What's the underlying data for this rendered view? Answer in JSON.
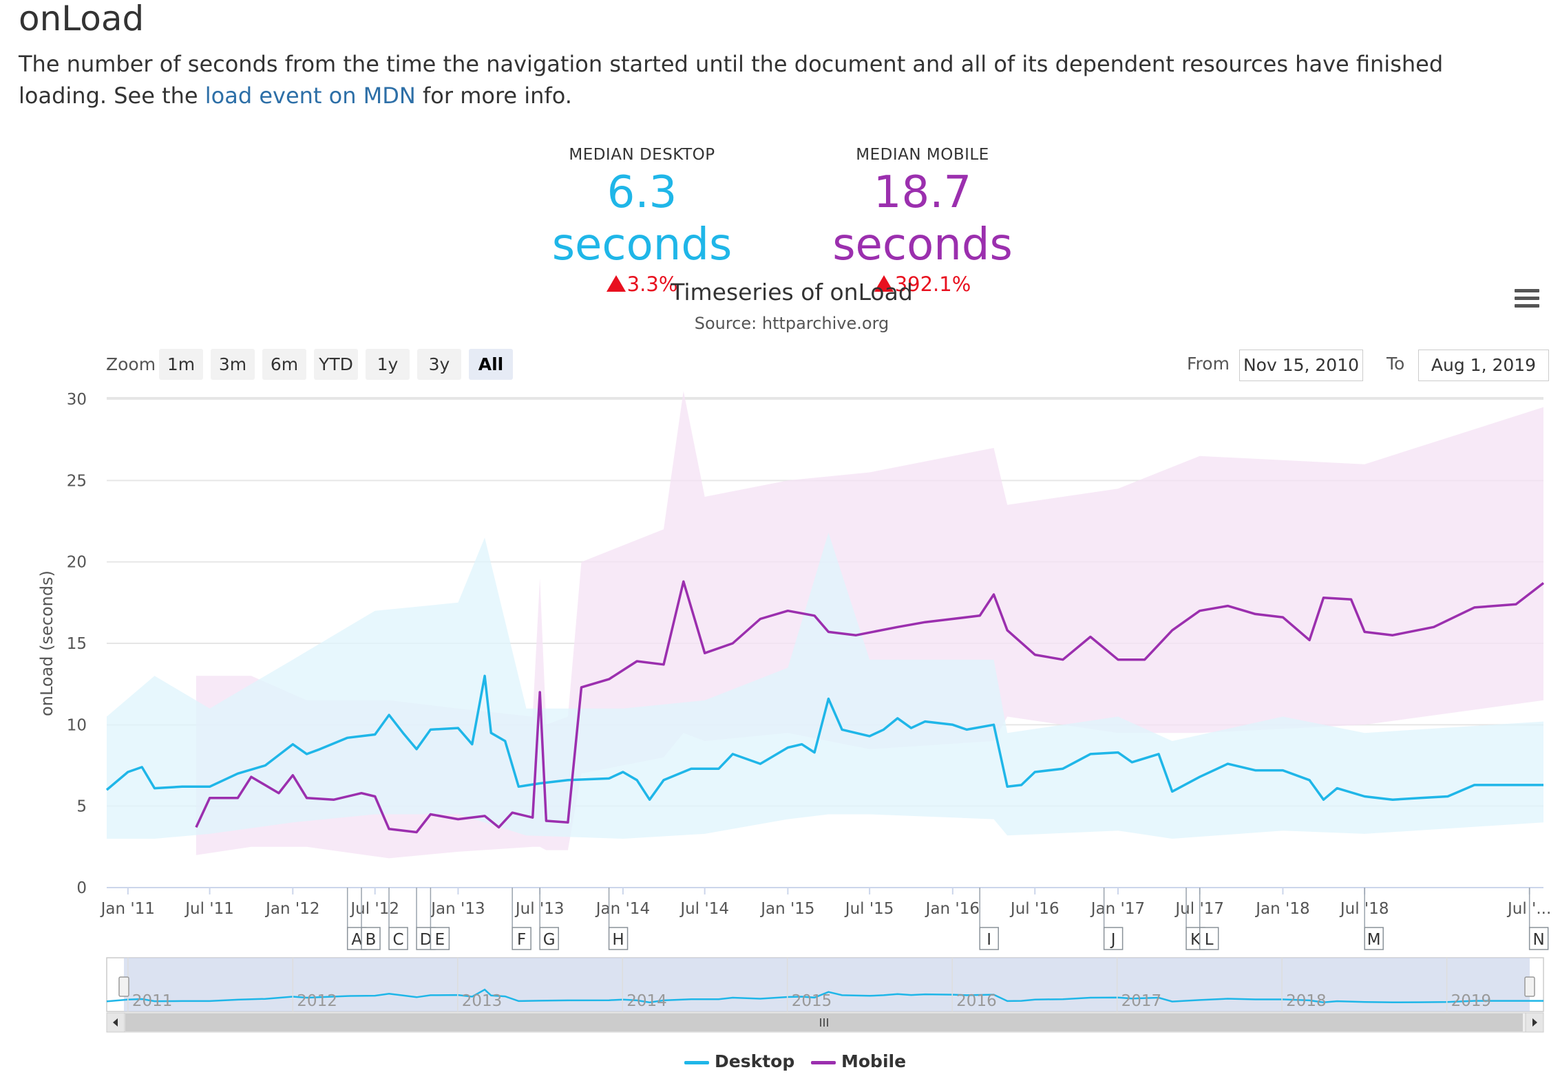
{
  "page": {
    "title": "onLoad",
    "description_before": "The number of seconds from the time the navigation started until the document and all of its dependent resources have finished loading. See the ",
    "description_link": "load event on MDN",
    "description_after": " for more info."
  },
  "metrics": [
    {
      "label": "MEDIAN DESKTOP",
      "value": "6.3 seconds",
      "change": "3.3%",
      "color": "#1fb6e8"
    },
    {
      "label": "MEDIAN MOBILE",
      "value": "18.7 seconds",
      "change": "392.1%",
      "color": "#9b2fae"
    }
  ],
  "toolbar": {
    "zoom_label": "Zoom",
    "zoom_buttons": [
      "1m",
      "3m",
      "6m",
      "YTD",
      "1y",
      "3y",
      "All"
    ],
    "active_zoom": "All",
    "from_label": "From",
    "from_value": "Nov 15, 2010",
    "to_label": "To",
    "to_value": "Aug 1, 2019",
    "menu_icon": "hamburger-menu-icon"
  },
  "colors": {
    "desktop": "#1fb6e8",
    "mobile": "#9b2fae",
    "desktop_band": "#dff4fc",
    "mobile_band": "#f4e1f4",
    "negative_change": "#e8101f",
    "link": "#2d6fa7"
  },
  "chart_data": {
    "type": "line",
    "title": "Timeseries of onLoad",
    "subtitle": "Source: httparchive.org",
    "ylabel": "onLoad (seconds)",
    "ylim": [
      0,
      30
    ],
    "yticks": [
      0,
      5,
      10,
      15,
      20,
      25,
      30
    ],
    "xlim": [
      "2010-11-15",
      "2019-08-01"
    ],
    "xticks": [
      {
        "date": "2011-01-01",
        "label": "Jan '11"
      },
      {
        "date": "2011-07-01",
        "label": "Jul '11"
      },
      {
        "date": "2012-01-01",
        "label": "Jan '12"
      },
      {
        "date": "2012-07-01",
        "label": "Jul '12"
      },
      {
        "date": "2013-01-01",
        "label": "Jan '13"
      },
      {
        "date": "2013-07-01",
        "label": "Jul '13"
      },
      {
        "date": "2014-01-01",
        "label": "Jan '14"
      },
      {
        "date": "2014-07-01",
        "label": "Jul '14"
      },
      {
        "date": "2015-01-01",
        "label": "Jan '15"
      },
      {
        "date": "2015-07-01",
        "label": "Jul '15"
      },
      {
        "date": "2016-01-01",
        "label": "Jan '16"
      },
      {
        "date": "2016-07-01",
        "label": "Jul '16"
      },
      {
        "date": "2017-01-01",
        "label": "Jan '17"
      },
      {
        "date": "2017-07-01",
        "label": "Jul '17"
      },
      {
        "date": "2018-01-01",
        "label": "Jan '18"
      },
      {
        "date": "2018-07-01",
        "label": "Jul '18"
      },
      {
        "date": "2019-07-01",
        "label": "Jul '..."
      }
    ],
    "grid": true,
    "legend": "bottom-center",
    "series": [
      {
        "name": "Desktop",
        "points": [
          [
            "2010-11-15",
            6.0
          ],
          [
            "2011-01-01",
            7.1
          ],
          [
            "2011-02-01",
            7.4
          ],
          [
            "2011-03-01",
            6.1
          ],
          [
            "2011-05-01",
            6.2
          ],
          [
            "2011-07-01",
            6.2
          ],
          [
            "2011-09-01",
            7.0
          ],
          [
            "2011-11-01",
            7.5
          ],
          [
            "2012-01-01",
            8.8
          ],
          [
            "2012-02-01",
            8.2
          ],
          [
            "2012-03-01",
            8.5
          ],
          [
            "2012-05-01",
            9.2
          ],
          [
            "2012-07-01",
            9.4
          ],
          [
            "2012-08-01",
            10.6
          ],
          [
            "2012-09-01",
            9.5
          ],
          [
            "2012-10-01",
            8.5
          ],
          [
            "2012-11-01",
            9.7
          ],
          [
            "2013-01-01",
            9.8
          ],
          [
            "2013-02-01",
            8.8
          ],
          [
            "2013-03-01",
            13.0
          ],
          [
            "2013-03-15",
            9.5
          ],
          [
            "2013-04-15",
            9.0
          ],
          [
            "2013-05-15",
            6.2
          ],
          [
            "2013-07-01",
            6.4
          ],
          [
            "2013-09-01",
            6.6
          ],
          [
            "2013-12-01",
            6.7
          ],
          [
            "2014-01-01",
            7.1
          ],
          [
            "2014-02-01",
            6.6
          ],
          [
            "2014-03-01",
            5.4
          ],
          [
            "2014-04-01",
            6.6
          ],
          [
            "2014-06-01",
            7.3
          ],
          [
            "2014-08-01",
            7.3
          ],
          [
            "2014-09-01",
            8.2
          ],
          [
            "2014-11-01",
            7.6
          ],
          [
            "2015-01-01",
            8.6
          ],
          [
            "2015-02-01",
            8.8
          ],
          [
            "2015-03-01",
            8.3
          ],
          [
            "2015-04-01",
            11.6
          ],
          [
            "2015-05-01",
            9.7
          ],
          [
            "2015-07-01",
            9.3
          ],
          [
            "2015-08-01",
            9.7
          ],
          [
            "2015-09-01",
            10.4
          ],
          [
            "2015-10-01",
            9.8
          ],
          [
            "2015-11-01",
            10.2
          ],
          [
            "2016-01-01",
            10.0
          ],
          [
            "2016-02-01",
            9.7
          ],
          [
            "2016-04-01",
            10.0
          ],
          [
            "2016-05-01",
            6.2
          ],
          [
            "2016-06-01",
            6.3
          ],
          [
            "2016-07-01",
            7.1
          ],
          [
            "2016-09-01",
            7.3
          ],
          [
            "2016-11-01",
            8.2
          ],
          [
            "2017-01-01",
            8.3
          ],
          [
            "2017-02-01",
            7.7
          ],
          [
            "2017-04-01",
            8.2
          ],
          [
            "2017-05-01",
            5.9
          ],
          [
            "2017-07-01",
            6.8
          ],
          [
            "2017-09-01",
            7.6
          ],
          [
            "2017-11-01",
            7.2
          ],
          [
            "2018-01-01",
            7.2
          ],
          [
            "2018-03-01",
            6.6
          ],
          [
            "2018-04-01",
            5.4
          ],
          [
            "2018-05-01",
            6.1
          ],
          [
            "2018-07-01",
            5.6
          ],
          [
            "2018-09-01",
            5.4
          ],
          [
            "2018-11-01",
            5.5
          ],
          [
            "2019-01-01",
            5.6
          ],
          [
            "2019-03-01",
            6.3
          ],
          [
            "2019-08-01",
            6.3
          ]
        ],
        "band": [
          [
            "2010-11-15",
            3.0,
            10.5
          ],
          [
            "2011-03-01",
            3.0,
            13.0
          ],
          [
            "2011-07-01",
            3.3,
            11.0
          ],
          [
            "2012-01-01",
            4.0,
            14.0
          ],
          [
            "2012-07-01",
            4.5,
            17.0
          ],
          [
            "2013-01-01",
            4.5,
            17.5
          ],
          [
            "2013-03-01",
            4.0,
            21.5
          ],
          [
            "2013-06-01",
            3.2,
            11.0
          ],
          [
            "2014-01-01",
            3.0,
            11.0
          ],
          [
            "2014-07-01",
            3.3,
            11.5
          ],
          [
            "2015-01-01",
            4.2,
            13.5
          ],
          [
            "2015-04-01",
            4.5,
            21.8
          ],
          [
            "2015-07-01",
            4.5,
            14.0
          ],
          [
            "2016-04-01",
            4.2,
            14.0
          ],
          [
            "2016-05-01",
            3.2,
            9.5
          ],
          [
            "2017-01-01",
            3.5,
            10.5
          ],
          [
            "2017-05-01",
            3.0,
            9.0
          ],
          [
            "2018-01-01",
            3.5,
            10.5
          ],
          [
            "2018-07-01",
            3.3,
            9.5
          ],
          [
            "2019-08-01",
            4.0,
            10.2
          ]
        ]
      },
      {
        "name": "Mobile",
        "points": [
          [
            "2011-06-01",
            3.7
          ],
          [
            "2011-07-01",
            5.5
          ],
          [
            "2011-09-01",
            5.5
          ],
          [
            "2011-10-01",
            6.8
          ],
          [
            "2011-12-01",
            5.8
          ],
          [
            "2012-01-01",
            6.9
          ],
          [
            "2012-02-01",
            5.5
          ],
          [
            "2012-04-01",
            5.4
          ],
          [
            "2012-06-01",
            5.8
          ],
          [
            "2012-07-01",
            5.6
          ],
          [
            "2012-08-01",
            3.6
          ],
          [
            "2012-10-01",
            3.4
          ],
          [
            "2012-11-01",
            4.5
          ],
          [
            "2013-01-01",
            4.2
          ],
          [
            "2013-03-01",
            4.4
          ],
          [
            "2013-04-01",
            3.7
          ],
          [
            "2013-05-01",
            4.6
          ],
          [
            "2013-06-15",
            4.3
          ],
          [
            "2013-07-01",
            12.0
          ],
          [
            "2013-07-15",
            4.1
          ],
          [
            "2013-09-01",
            4.0
          ],
          [
            "2013-10-01",
            12.3
          ],
          [
            "2013-12-01",
            12.8
          ],
          [
            "2014-02-01",
            13.9
          ],
          [
            "2014-04-01",
            13.7
          ],
          [
            "2014-05-15",
            18.8
          ],
          [
            "2014-07-01",
            14.4
          ],
          [
            "2014-09-01",
            15.0
          ],
          [
            "2014-11-01",
            16.5
          ],
          [
            "2015-01-01",
            17.0
          ],
          [
            "2015-03-01",
            16.7
          ],
          [
            "2015-04-01",
            15.7
          ],
          [
            "2015-06-01",
            15.5
          ],
          [
            "2015-09-01",
            16.0
          ],
          [
            "2015-11-01",
            16.3
          ],
          [
            "2016-01-01",
            16.5
          ],
          [
            "2016-03-01",
            16.7
          ],
          [
            "2016-04-01",
            18.0
          ],
          [
            "2016-05-01",
            15.8
          ],
          [
            "2016-07-01",
            14.3
          ],
          [
            "2016-09-01",
            14.0
          ],
          [
            "2016-11-01",
            15.4
          ],
          [
            "2017-01-01",
            14.0
          ],
          [
            "2017-03-01",
            14.0
          ],
          [
            "2017-05-01",
            15.8
          ],
          [
            "2017-07-01",
            17.0
          ],
          [
            "2017-09-01",
            17.3
          ],
          [
            "2017-11-01",
            16.8
          ],
          [
            "2018-01-01",
            16.6
          ],
          [
            "2018-03-01",
            15.2
          ],
          [
            "2018-04-01",
            17.8
          ],
          [
            "2018-06-01",
            17.7
          ],
          [
            "2018-07-01",
            15.7
          ],
          [
            "2018-09-01",
            15.5
          ],
          [
            "2018-12-01",
            16.0
          ],
          [
            "2019-03-01",
            17.2
          ],
          [
            "2019-06-01",
            17.4
          ],
          [
            "2019-08-01",
            18.7
          ]
        ],
        "band": [
          [
            "2011-06-01",
            2.0,
            13.0
          ],
          [
            "2011-10-01",
            2.5,
            13.0
          ],
          [
            "2012-02-01",
            2.5,
            11.5
          ],
          [
            "2012-08-01",
            1.8,
            11.5
          ],
          [
            "2013-01-01",
            2.2,
            11.0
          ],
          [
            "2013-06-15",
            2.5,
            10.5
          ],
          [
            "2013-07-01",
            2.5,
            19.0
          ],
          [
            "2013-07-15",
            2.3,
            10.0
          ],
          [
            "2013-09-01",
            2.3,
            10.5
          ],
          [
            "2013-10-01",
            7.0,
            20.0
          ],
          [
            "2014-04-01",
            8.0,
            22.0
          ],
          [
            "2014-05-15",
            9.5,
            30.5
          ],
          [
            "2014-07-01",
            9.0,
            24.0
          ],
          [
            "2015-01-01",
            9.5,
            25.0
          ],
          [
            "2015-07-01",
            8.5,
            25.5
          ],
          [
            "2016-04-01",
            9.0,
            27.0
          ],
          [
            "2016-05-01",
            10.5,
            23.5
          ],
          [
            "2017-01-01",
            9.5,
            24.5
          ],
          [
            "2017-07-01",
            9.5,
            26.5
          ],
          [
            "2018-07-01",
            10.0,
            26.0
          ],
          [
            "2019-08-01",
            11.5,
            29.5
          ]
        ]
      }
    ],
    "flags": [
      {
        "date": "2012-05-01",
        "label": "A"
      },
      {
        "date": "2012-06-01",
        "label": "B"
      },
      {
        "date": "2012-08-01",
        "label": "C"
      },
      {
        "date": "2012-10-01",
        "label": "D"
      },
      {
        "date": "2012-11-01",
        "label": "E"
      },
      {
        "date": "2013-05-01",
        "label": "F"
      },
      {
        "date": "2013-07-01",
        "label": "G"
      },
      {
        "date": "2013-12-01",
        "label": "H"
      },
      {
        "date": "2016-03-01",
        "label": "I"
      },
      {
        "date": "2016-12-01",
        "label": "J"
      },
      {
        "date": "2017-06-01",
        "label": "K"
      },
      {
        "date": "2017-07-01",
        "label": "L"
      },
      {
        "date": "2018-07-01",
        "label": "M"
      },
      {
        "date": "2019-07-01",
        "label": "N"
      }
    ],
    "navigator": {
      "year_labels": [
        "2011",
        "2012",
        "2013",
        "2014",
        "2015",
        "2016",
        "2017",
        "2018",
        "2019"
      ]
    }
  },
  "legend": {
    "desktop_label": "Desktop",
    "mobile_label": "Mobile"
  }
}
